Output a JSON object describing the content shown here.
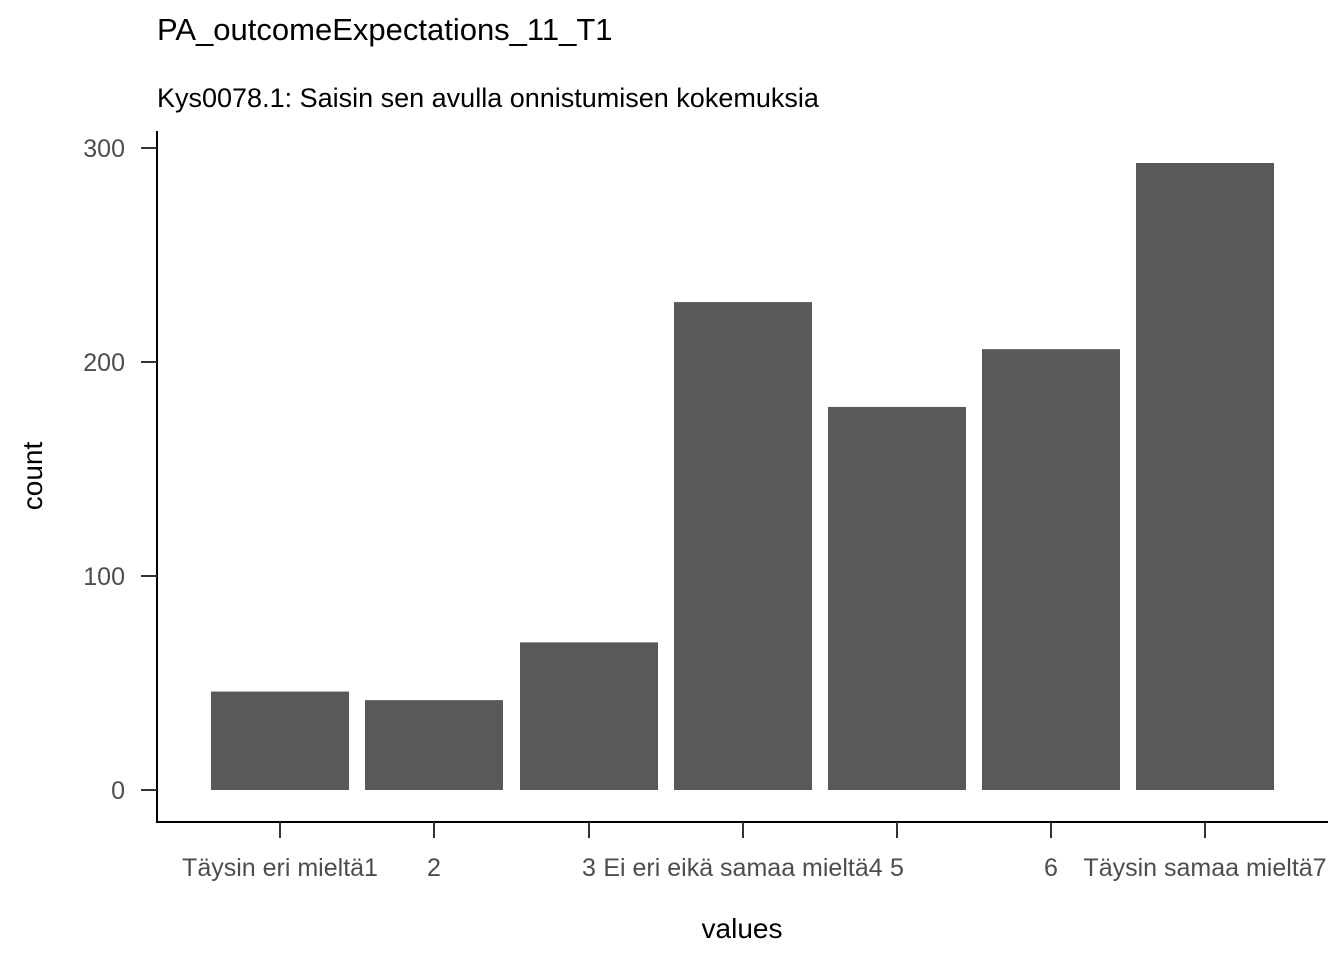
{
  "chart_data": {
    "type": "bar",
    "title": "PA_outcomeExpectations_11_T1",
    "subtitle": "Kys0078.1: Saisin sen avulla onnistumisen kokemuksia",
    "xlabel": "values",
    "ylabel": "count",
    "categories": [
      "1",
      "2",
      "3",
      "4",
      "5",
      "6",
      "7"
    ],
    "category_labels": [
      "Täysin eri mieltä1",
      "2",
      "3",
      "Ei eri eikä samaa mieltä4",
      "5",
      "6",
      "Täysin samaa mieltä7"
    ],
    "values": [
      46,
      42,
      69,
      228,
      179,
      206,
      293
    ],
    "ylim": [
      0,
      310
    ],
    "yticks": [
      0,
      100,
      200,
      300
    ],
    "grid": false,
    "bar_color": "#595959"
  }
}
